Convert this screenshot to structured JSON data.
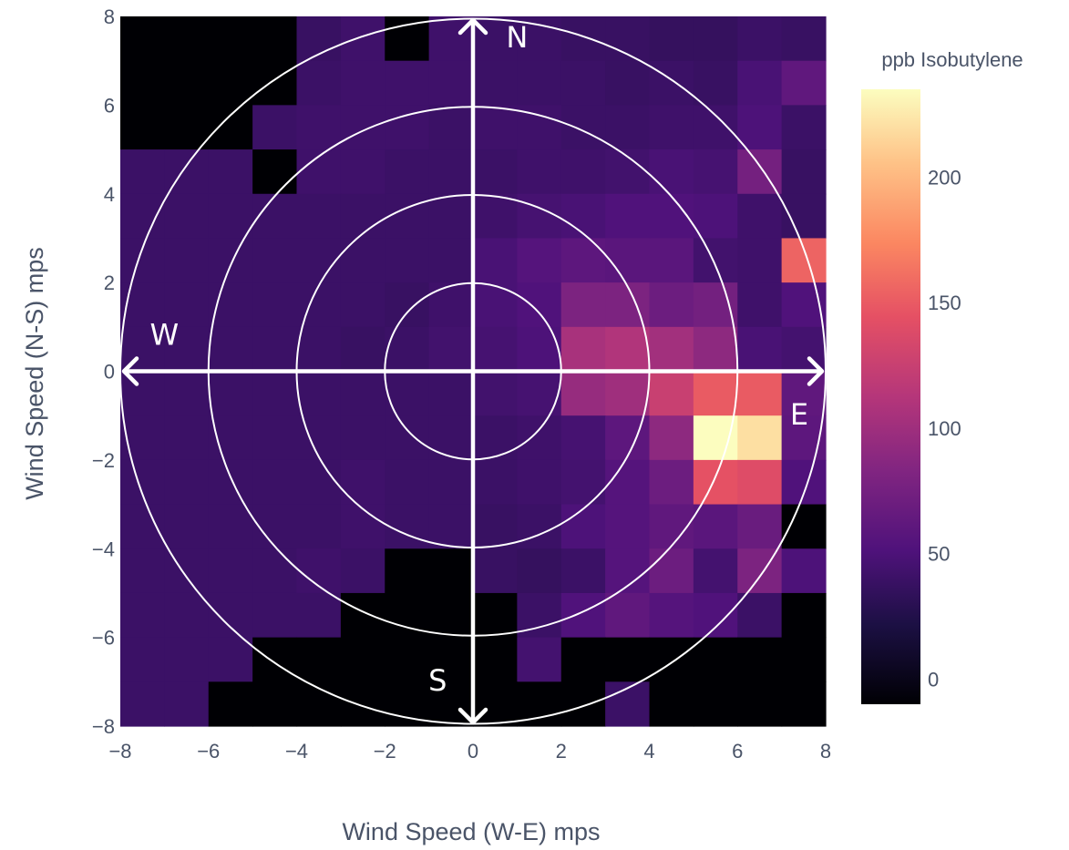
{
  "chart_data": {
    "type": "heatmap",
    "xlabel": "Wind Speed (W-E) mps",
    "ylabel": "Wind Speed (N-S) mps",
    "colorbar_title": "ppb Isobutylene",
    "xlim": [
      -8,
      8
    ],
    "ylim": [
      -8,
      8
    ],
    "x_ticks": [
      -8,
      -6,
      -4,
      -2,
      0,
      2,
      4,
      6,
      8
    ],
    "y_ticks": [
      -8,
      -6,
      -4,
      -2,
      0,
      2,
      4,
      6,
      8
    ],
    "x_tick_labels": [
      "−8",
      "−6",
      "−4",
      "−2",
      "0",
      "2",
      "4",
      "6",
      "8"
    ],
    "y_tick_labels": [
      "−8",
      "−6",
      "−4",
      "−2",
      "0",
      "2",
      "4",
      "6",
      "8"
    ],
    "colorscale": "magma",
    "zlim": [
      -10,
      235
    ],
    "colorbar_ticks": [
      0,
      50,
      100,
      150,
      200
    ],
    "colorbar_tick_labels": [
      "0",
      "50",
      "100",
      "150",
      "200"
    ],
    "cell_size": 1,
    "x_edges_start": -8,
    "y_edges_top": 8,
    "rows_north_to_south": [
      [
        -10,
        -10,
        -10,
        -10,
        38,
        42,
        -10,
        42,
        40,
        40,
        38,
        38,
        36,
        36,
        40,
        38
      ],
      [
        -10,
        -10,
        -10,
        -10,
        40,
        42,
        42,
        42,
        40,
        40,
        40,
        38,
        40,
        38,
        48,
        62
      ],
      [
        -10,
        -10,
        -10,
        40,
        42,
        42,
        42,
        40,
        42,
        42,
        40,
        40,
        42,
        42,
        50,
        40
      ],
      [
        40,
        40,
        40,
        -10,
        42,
        42,
        40,
        40,
        40,
        42,
        42,
        44,
        48,
        46,
        75,
        38
      ],
      [
        40,
        40,
        40,
        40,
        40,
        40,
        40,
        40,
        42,
        46,
        48,
        52,
        52,
        50,
        42,
        38
      ],
      [
        40,
        40,
        40,
        40,
        40,
        40,
        40,
        40,
        48,
        55,
        60,
        58,
        58,
        44,
        42,
        155
      ],
      [
        40,
        40,
        40,
        40,
        40,
        40,
        38,
        42,
        48,
        52,
        80,
        80,
        70,
        74,
        42,
        52
      ],
      [
        40,
        40,
        40,
        40,
        40,
        38,
        40,
        44,
        46,
        50,
        105,
        110,
        102,
        90,
        48,
        45
      ],
      [
        40,
        40,
        40,
        40,
        40,
        40,
        40,
        40,
        44,
        46,
        95,
        100,
        125,
        150,
        150,
        62
      ],
      [
        40,
        40,
        40,
        40,
        40,
        40,
        40,
        40,
        40,
        42,
        46,
        60,
        90,
        235,
        220,
        60
      ],
      [
        40,
        40,
        40,
        40,
        40,
        42,
        40,
        40,
        40,
        42,
        45,
        55,
        70,
        145,
        140,
        52
      ],
      [
        40,
        40,
        40,
        40,
        40,
        42,
        40,
        40,
        38,
        40,
        50,
        55,
        62,
        58,
        68,
        -10
      ],
      [
        40,
        40,
        40,
        40,
        42,
        40,
        -10,
        -10,
        38,
        36,
        40,
        55,
        70,
        45,
        80,
        50
      ],
      [
        40,
        40,
        40,
        40,
        40,
        -10,
        -10,
        -10,
        -10,
        40,
        52,
        62,
        55,
        52,
        40,
        -10
      ],
      [
        40,
        40,
        40,
        -10,
        -10,
        -10,
        -10,
        -10,
        -10,
        45,
        -10,
        -10,
        -10,
        -10,
        -10,
        -10
      ],
      [
        40,
        40,
        -10,
        -10,
        -10,
        -10,
        -10,
        -10,
        -10,
        -10,
        -10,
        40,
        -10,
        -10,
        -10,
        -10
      ]
    ],
    "annotations": [
      {
        "label": "N",
        "x": 1,
        "y": 7.3
      },
      {
        "label": "S",
        "x": -0.8,
        "y": -7.2
      },
      {
        "label": "E",
        "x": 7.4,
        "y": -1.2
      },
      {
        "label": "W",
        "x": -7.0,
        "y": 0.6
      }
    ],
    "rings_radius": [
      2,
      4,
      6,
      8
    ]
  }
}
